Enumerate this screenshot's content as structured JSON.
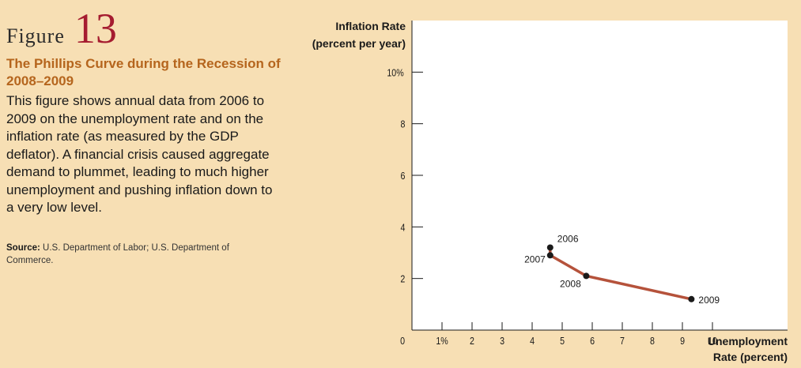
{
  "figure": {
    "label": "Figure",
    "number": "13",
    "title": "The Phillips Curve during the Recession of 2008–2009",
    "description": "This figure shows annual data from 2006 to 2009 on the unemployment rate and on the inflation rate (as measured by the GDP deflator). A financial crisis caused aggregate demand to plummet, leading to much higher unemployment and pushing inflation down to a very low level.",
    "source_label": "Source:",
    "source_text": "U.S. Department of Labor; U.S. Department of Commerce."
  },
  "chart_data": {
    "type": "line",
    "ylabel": [
      "Inflation Rate",
      "(percent per year)"
    ],
    "xlabel": [
      "Unemployment",
      "Rate (percent)"
    ],
    "xlim": [
      0,
      12.5
    ],
    "ylim": [
      0,
      12
    ],
    "x_ticks": [
      1,
      2,
      3,
      4,
      5,
      6,
      7,
      8,
      9,
      10
    ],
    "x_tick_labels": [
      "1%",
      "2",
      "3",
      "4",
      "5",
      "6",
      "7",
      "8",
      "9",
      "10"
    ],
    "y_ticks": [
      2,
      4,
      6,
      8,
      10
    ],
    "y_tick_labels": [
      "2",
      "4",
      "6",
      "8",
      "10%"
    ],
    "origin_label": "0",
    "series": [
      {
        "points": [
          {
            "label": "2006",
            "x": 4.6,
            "y": 3.2
          },
          {
            "label": "2007",
            "x": 4.6,
            "y": 2.9
          },
          {
            "label": "2008",
            "x": 5.8,
            "y": 2.1
          },
          {
            "label": "2009",
            "x": 9.3,
            "y": 1.2
          }
        ],
        "color": "#b5523b"
      }
    ],
    "grid": false
  }
}
